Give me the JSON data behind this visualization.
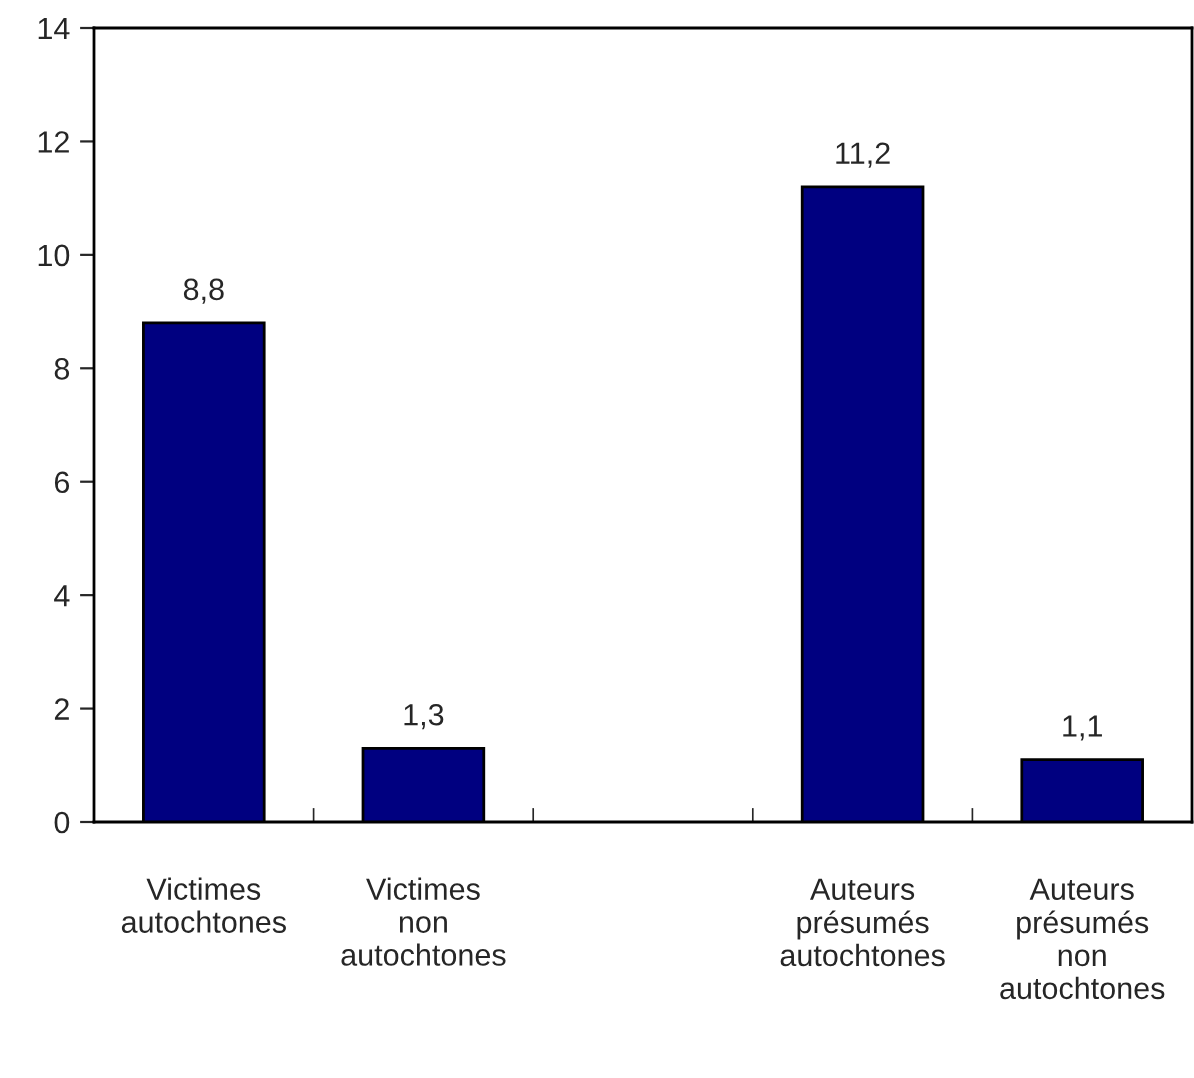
{
  "chart_data": {
    "type": "bar",
    "categories": [
      "Victimes\nautochtones",
      "Victimes\nnon\nautochtones",
      null,
      "Auteurs\nprésumés\nautochtones",
      "Auteurs\nprésumés\nnon\nautochtones"
    ],
    "values": [
      8.8,
      1.3,
      null,
      11.2,
      1.1
    ],
    "value_labels": [
      "8,8",
      "1,3",
      null,
      "11,2",
      "1,1"
    ],
    "color": "#000080",
    "ylim": [
      0,
      14
    ],
    "yticks": [
      0,
      2,
      4,
      6,
      8,
      10,
      12,
      14
    ],
    "grid": false,
    "legend": false
  }
}
